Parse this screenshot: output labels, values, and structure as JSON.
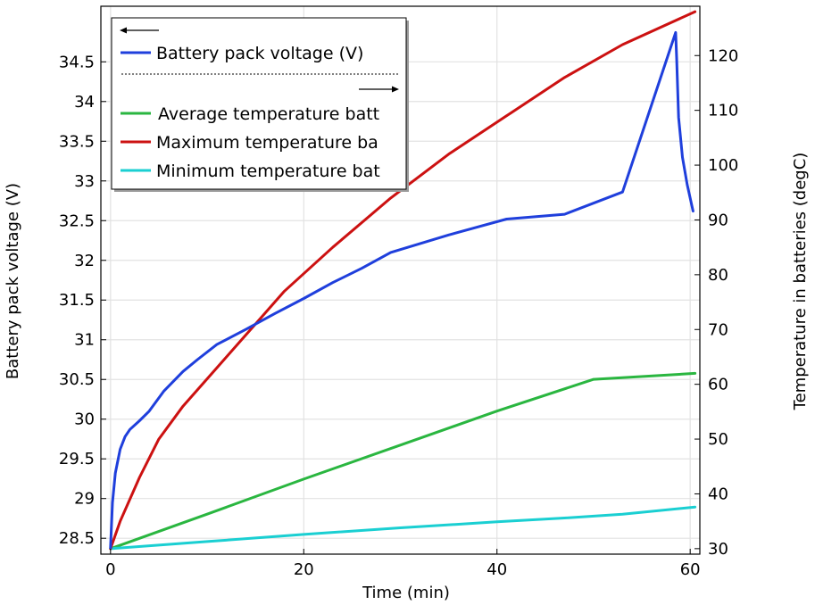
{
  "chart_data": {
    "type": "line",
    "xlabel": "Time (min)",
    "ylabel": "Battery pack voltage (V)",
    "y2label": "Temperature in batteries (degC)",
    "xlim": [
      -1,
      61
    ],
    "ylim": [
      28.3,
      35.2
    ],
    "y2lim": [
      29,
      129
    ],
    "x_ticks": [
      0,
      20,
      40,
      60
    ],
    "y_ticks": [
      28.5,
      29,
      29.5,
      30,
      30.5,
      31,
      31.5,
      32,
      32.5,
      33,
      33.5,
      34,
      34.5
    ],
    "y_tick_labels": [
      "28.5",
      "29",
      "29.5",
      "30",
      "30.5",
      "31",
      "31.5",
      "32",
      "32.5",
      "33",
      "33.5",
      "34",
      "34.5"
    ],
    "y2_ticks": [
      30,
      40,
      50,
      60,
      70,
      80,
      90,
      100,
      110,
      120
    ],
    "grid": true,
    "legend": {
      "placement": "top-left",
      "left_axis_marker": "←",
      "right_axis_marker": "→",
      "left_entries": [
        {
          "label": "Battery pack voltage (V)",
          "color": "#1f3fdc"
        }
      ],
      "right_entries": [
        {
          "label": "Average temperature batt",
          "color": "#2ab640"
        },
        {
          "label": "Maximum temperature ba",
          "color": "#cc1111"
        },
        {
          "label": "Minimum temperature bat",
          "color": "#1acfd2"
        }
      ]
    },
    "series": [
      {
        "name": "Battery pack voltage (V)",
        "axis": "left",
        "color": "#1f3fdc",
        "x": [
          0,
          0.2,
          0.5,
          1,
          1.5,
          2,
          3,
          4,
          5.5,
          7.5,
          9,
          11,
          14,
          17,
          20,
          23,
          26,
          29,
          35,
          41,
          47,
          53,
          58.5,
          58.6,
          58.8,
          59.2,
          59.7,
          60.3
        ],
        "y": [
          28.38,
          28.95,
          29.32,
          29.62,
          29.78,
          29.87,
          29.98,
          30.1,
          30.35,
          30.6,
          30.75,
          30.94,
          31.13,
          31.33,
          31.52,
          31.72,
          31.9,
          32.1,
          32.32,
          32.52,
          32.58,
          32.86,
          34.87,
          34.55,
          33.8,
          33.3,
          32.95,
          32.62
        ]
      },
      {
        "name": "Maximum temperature ba",
        "axis": "right",
        "color": "#cc1111",
        "x": [
          0,
          1,
          3,
          5,
          7.5,
          11,
          15,
          18,
          23,
          29,
          35,
          41,
          47,
          53,
          60.5
        ],
        "y": [
          30,
          35,
          43,
          50,
          56,
          63,
          71,
          77,
          85,
          94,
          102,
          109,
          116,
          122,
          128
        ]
      },
      {
        "name": "Average temperature batt",
        "axis": "right",
        "color": "#2ab640",
        "x": [
          0,
          10,
          20,
          30,
          40,
          50,
          60.5
        ],
        "y": [
          30,
          36.3,
          42.7,
          48.9,
          55.1,
          60.9,
          62
        ]
      },
      {
        "name": "Minimum temperature bat",
        "axis": "right",
        "color": "#1acfd2",
        "x": [
          0,
          10,
          20,
          30,
          40,
          47,
          53,
          60.5
        ],
        "y": [
          30,
          31.3,
          32.6,
          33.8,
          34.9,
          35.6,
          36.3,
          37.6
        ]
      }
    ]
  }
}
